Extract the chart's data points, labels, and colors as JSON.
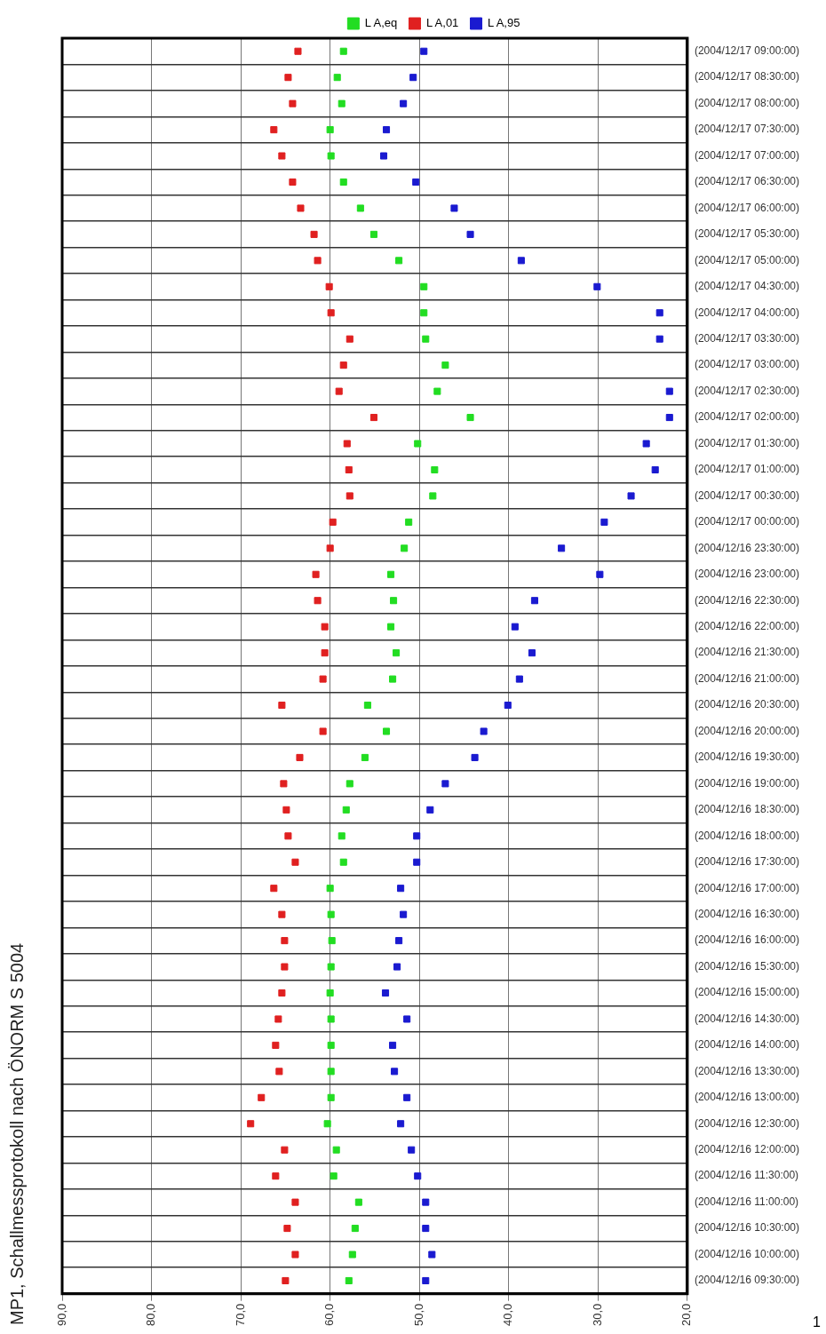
{
  "chart_data": {
    "type": "scatter",
    "title": "MP1, Schallmessprotokoll nach ÖNORM S 5004",
    "orientation": "horizontal",
    "categories": [
      "(2004/12/17 09:00:00)",
      "(2004/12/17 08:30:00)",
      "(2004/12/17 08:00:00)",
      "(2004/12/17 07:30:00)",
      "(2004/12/17 07:00:00)",
      "(2004/12/17 06:30:00)",
      "(2004/12/17 06:00:00)",
      "(2004/12/17 05:30:00)",
      "(2004/12/17 05:00:00)",
      "(2004/12/17 04:30:00)",
      "(2004/12/17 04:00:00)",
      "(2004/12/17 03:30:00)",
      "(2004/12/17 03:00:00)",
      "(2004/12/17 02:30:00)",
      "(2004/12/17 02:00:00)",
      "(2004/12/17 01:30:00)",
      "(2004/12/17 01:00:00)",
      "(2004/12/17 00:30:00)",
      "(2004/12/17 00:00:00)",
      "(2004/12/16 23:30:00)",
      "(2004/12/16 23:00:00)",
      "(2004/12/16 22:30:00)",
      "(2004/12/16 22:00:00)",
      "(2004/12/16 21:30:00)",
      "(2004/12/16 21:00:00)",
      "(2004/12/16 20:30:00)",
      "(2004/12/16 20:00:00)",
      "(2004/12/16 19:30:00)",
      "(2004/12/16 19:00:00)",
      "(2004/12/16 18:30:00)",
      "(2004/12/16 18:00:00)",
      "(2004/12/16 17:30:00)",
      "(2004/12/16 17:00:00)",
      "(2004/12/16 16:30:00)",
      "(2004/12/16 16:00:00)",
      "(2004/12/16 15:30:00)",
      "(2004/12/16 15:00:00)",
      "(2004/12/16 14:30:00)",
      "(2004/12/16 14:00:00)",
      "(2004/12/16 13:30:00)",
      "(2004/12/16 13:00:00)",
      "(2004/12/16 12:30:00)",
      "(2004/12/16 12:00:00)",
      "(2004/12/16 11:30:00)",
      "(2004/12/16 11:00:00)",
      "(2004/12/16 10:30:00)",
      "(2004/12/16 10:00:00)",
      "(2004/12/16 09:30:00)"
    ],
    "series": [
      {
        "name": "L A,eq",
        "color": "#22dd22",
        "values": [
          58.5,
          59.2,
          58.7,
          60.0,
          59.9,
          58.5,
          56.6,
          55.1,
          52.3,
          49.5,
          49.5,
          49.3,
          47.1,
          48.0,
          44.3,
          50.2,
          48.3,
          48.5,
          51.2,
          51.7,
          53.2,
          52.9,
          53.2,
          52.6,
          53.0,
          55.8,
          53.7,
          56.1,
          57.8,
          58.2,
          58.7,
          58.5,
          60.0,
          59.9,
          59.8,
          59.9,
          60.0,
          59.9,
          59.9,
          59.9,
          59.9,
          60.3,
          59.3,
          59.6,
          56.8,
          57.2,
          57.5,
          57.9
        ]
      },
      {
        "name": "L A,01",
        "color": "#e02020",
        "values": [
          63.6,
          64.7,
          64.2,
          66.3,
          65.4,
          64.2,
          63.3,
          61.8,
          61.4,
          60.1,
          59.9,
          57.8,
          58.5,
          59.0,
          55.1,
          58.1,
          57.9,
          57.8,
          59.7,
          60.0,
          61.6,
          61.4,
          60.6,
          60.6,
          60.8,
          65.4,
          60.8,
          63.4,
          65.2,
          64.9,
          64.7,
          63.9,
          66.3,
          65.4,
          65.1,
          65.1,
          65.4,
          65.8,
          66.1,
          65.7,
          67.7,
          68.9,
          65.1,
          66.1,
          63.9,
          64.8,
          63.9,
          65.0
        ]
      },
      {
        "name": "L A,95",
        "color": "#1a1ad0",
        "values": [
          49.5,
          50.7,
          51.8,
          53.7,
          54.0,
          50.4,
          46.1,
          44.3,
          38.6,
          30.1,
          23.1,
          23.1,
          null,
          22.0,
          22.0,
          24.6,
          23.6,
          26.3,
          29.3,
          34.1,
          29.8,
          37.1,
          39.3,
          37.4,
          38.8,
          40.1,
          42.8,
          43.8,
          47.1,
          48.8,
          50.3,
          50.3,
          52.1,
          51.8,
          52.3,
          52.5,
          53.8,
          51.4,
          53.0,
          52.8,
          51.4,
          52.1,
          50.9,
          50.2,
          49.3,
          49.3,
          48.6,
          49.3
        ]
      }
    ],
    "xlim": [
      90,
      20
    ],
    "xticks": [
      {
        "value": 90,
        "label": "90,0"
      },
      {
        "value": 80,
        "label": "80,0"
      },
      {
        "value": 70,
        "label": "70,0"
      },
      {
        "value": 60,
        "label": "60,0"
      },
      {
        "value": 50,
        "label": "50,0"
      },
      {
        "value": 40,
        "label": "40,0"
      },
      {
        "value": 30,
        "label": "30,0"
      },
      {
        "value": 20,
        "label": "20,0"
      }
    ],
    "grid": true,
    "legend": "top",
    "marker": "square",
    "annotations": [
      "1"
    ]
  }
}
